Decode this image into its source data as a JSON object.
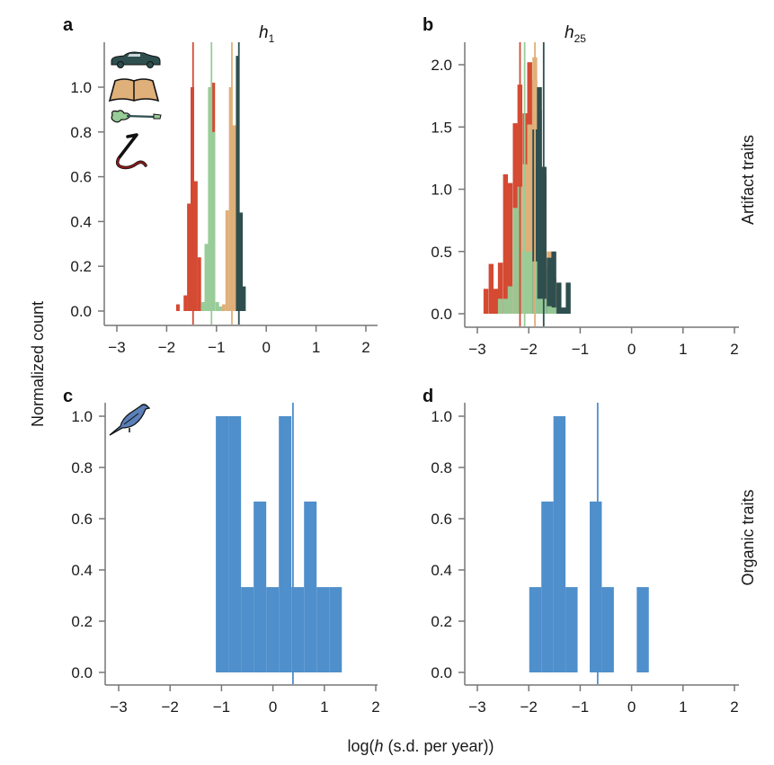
{
  "figure": {
    "ylabel": "Normalized count",
    "xlabel_prefix": "log(",
    "xlabel_var": "h",
    "xlabel_suffix": " (s.d. per year))",
    "row_labels": [
      "Artifact traits",
      "Organic traits"
    ]
  },
  "colors": {
    "cars": "#2f4f4f",
    "books": "#e0b07a",
    "guitars": "#98cc98",
    "sculpture": "#d44a33",
    "birds": "#4f8fcb"
  },
  "icons": [
    "car-icon",
    "book-icon",
    "guitar-icon",
    "sculpture-icon",
    "bird-icon"
  ],
  "chart_data": [
    {
      "id": "a",
      "type": "bar",
      "letter": "a",
      "title_var": "h",
      "title_sub": "1",
      "xlim": [
        -3.2,
        2.25
      ],
      "ylim": [
        -0.06,
        1.2
      ],
      "xticks": [
        "-3",
        "-2",
        "-1",
        "0",
        "1",
        "2"
      ],
      "xtick_values": [
        -3,
        -2,
        -1,
        0,
        1,
        2
      ],
      "yticks": [
        "0.0",
        "0.2",
        "0.4",
        "0.6",
        "0.8",
        "1.0"
      ],
      "ytick_values": [
        0,
        0.2,
        0.4,
        0.6,
        0.8,
        1.0
      ],
      "series": [
        {
          "name": "sculpture",
          "color_key": "sculpture",
          "bin_width": 0.072,
          "bins": [
            [
              -1.81,
              0.03
            ],
            [
              -1.66,
              0.07
            ],
            [
              -1.59,
              0.48
            ],
            [
              -1.52,
              1.0
            ],
            [
              -1.45,
              0.58
            ],
            [
              -1.38,
              0.24
            ],
            [
              -1.1,
              1.02
            ]
          ],
          "mean": -1.47
        },
        {
          "name": "guitars",
          "color_key": "guitars",
          "bin_width": 0.072,
          "bins": [
            [
              -1.31,
              0.04
            ],
            [
              -1.24,
              0.3
            ],
            [
              -1.17,
              1.0
            ],
            [
              -1.1,
              0.8
            ],
            [
              -1.02,
              0.04
            ],
            [
              -0.95,
              0.02
            ]
          ],
          "mean": -1.1
        },
        {
          "name": "books",
          "color_key": "books",
          "bin_width": 0.072,
          "bins": [
            [
              -0.89,
              0.03
            ],
            [
              -0.82,
              0.45
            ],
            [
              -0.75,
              1.0
            ],
            [
              -0.68,
              0.83
            ]
          ],
          "mean": -0.69
        },
        {
          "name": "cars",
          "color_key": "cars",
          "bin_width": 0.068,
          "bins": [
            [
              -0.61,
              1.14
            ],
            [
              -0.54,
              0.44
            ],
            [
              -0.48,
              0.11
            ]
          ],
          "mean": -0.55
        }
      ]
    },
    {
      "id": "b",
      "type": "bar",
      "letter": "b",
      "title_var": "h",
      "title_sub": "25",
      "xlim": [
        -3.25,
        2.25
      ],
      "ylim": [
        -0.1,
        2.2
      ],
      "xticks": [
        "-3",
        "-2",
        "-1",
        "0",
        "1",
        "2"
      ],
      "xtick_values": [
        -3,
        -2,
        -1,
        0,
        1,
        2
      ],
      "yticks": [
        "0.0",
        "0.5",
        "1.0",
        "1.5",
        "2.0"
      ],
      "ytick_values": [
        0,
        0.5,
        1.0,
        1.5,
        2.0
      ],
      "series": [
        {
          "name": "sculpture",
          "color_key": "sculpture",
          "bin_width": 0.095,
          "bins": [
            [
              -2.88,
              0.2
            ],
            [
              -2.78,
              0.4
            ],
            [
              -2.69,
              0.2
            ],
            [
              -2.6,
              0.41
            ],
            [
              -2.5,
              1.12
            ],
            [
              -2.41,
              1.05
            ],
            [
              -2.31,
              1.53
            ],
            [
              -2.22,
              1.84
            ],
            [
              -2.12,
              1.61
            ],
            [
              -2.03,
              2.02
            ],
            [
              -1.93,
              1.88
            ],
            [
              -1.84,
              1.64
            ],
            [
              -1.75,
              1.12
            ],
            [
              -1.65,
              0.37
            ],
            [
              -1.56,
              0.28
            ],
            [
              -1.46,
              0.24
            ]
          ],
          "mean": -2.17
        },
        {
          "name": "books",
          "color_key": "books",
          "bin_width": 0.095,
          "bins": [
            [
              -2.12,
              1.2
            ],
            [
              -2.03,
              1.52
            ],
            [
              -1.93,
              2.06
            ],
            [
              -1.84,
              1.3
            ],
            [
              -1.75,
              0.9
            ],
            [
              -1.65,
              0.5
            ],
            [
              -1.56,
              0.26
            ],
            [
              -1.46,
              0.05
            ]
          ],
          "mean": -1.88
        },
        {
          "name": "cars",
          "color_key": "cars",
          "bin_width": 0.095,
          "bins": [
            [
              -1.93,
              1.48
            ],
            [
              -1.84,
              1.82
            ],
            [
              -1.75,
              1.18
            ],
            [
              -1.65,
              0.45
            ],
            [
              -1.56,
              0.5
            ],
            [
              -1.46,
              0.25
            ],
            [
              -1.37,
              0.05
            ],
            [
              -1.28,
              0.25
            ]
          ],
          "mean": -1.71
        },
        {
          "name": "guitars",
          "color_key": "guitars",
          "bin_width": 0.095,
          "bins": [
            [
              -2.6,
              0.12
            ],
            [
              -2.5,
              0.12
            ],
            [
              -2.41,
              0.22
            ],
            [
              -2.31,
              0.85
            ],
            [
              -2.22,
              1.02
            ],
            [
              -2.12,
              0.5
            ],
            [
              -2.03,
              0.5
            ],
            [
              -1.93,
              0.42
            ],
            [
              -1.84,
              0.12
            ],
            [
              -1.75,
              0.12
            ],
            [
              -1.65,
              0.06
            ],
            [
              -1.56,
              0.05
            ]
          ],
          "mean": -2.08
        }
      ]
    },
    {
      "id": "c",
      "type": "bar",
      "letter": "c",
      "xlim": [
        -3.25,
        2.25
      ],
      "ylim": [
        -0.05,
        1.08
      ],
      "xticks": [
        "-3",
        "-2",
        "-1",
        "0",
        "1",
        "2"
      ],
      "xtick_values": [
        -3,
        -2,
        -1,
        0,
        1,
        2
      ],
      "yticks": [
        "0.0",
        "0.2",
        "0.4",
        "0.6",
        "0.8",
        "1.0"
      ],
      "ytick_values": [
        0,
        0.2,
        0.4,
        0.6,
        0.8,
        1.0
      ],
      "series": [
        {
          "name": "birds",
          "color_key": "birds",
          "bin_width": 0.245,
          "bins": [
            [
              -1.11,
              1.0
            ],
            [
              -0.865,
              1.0
            ],
            [
              -0.62,
              0.333
            ],
            [
              -0.375,
              0.667
            ],
            [
              -0.13,
              0.333
            ],
            [
              0.115,
              1.0
            ],
            [
              0.36,
              0.333
            ],
            [
              0.605,
              0.667
            ],
            [
              0.85,
              0.333
            ],
            [
              1.095,
              0.333
            ]
          ],
          "mean": 0.39
        }
      ]
    },
    {
      "id": "d",
      "type": "bar",
      "letter": "d",
      "xlim": [
        -3.25,
        2.25
      ],
      "ylim": [
        -0.05,
        1.08
      ],
      "xticks": [
        "-3",
        "-2",
        "-1",
        "0",
        "1",
        "2"
      ],
      "xtick_values": [
        -3,
        -2,
        -1,
        0,
        1,
        2
      ],
      "yticks": [
        "0.0",
        "0.2",
        "0.4",
        "0.6",
        "0.8",
        "1.0"
      ],
      "ytick_values": [
        0,
        0.2,
        0.4,
        0.6,
        0.8,
        1.0
      ],
      "series": [
        {
          "name": "birds",
          "color_key": "birds",
          "bin_width": 0.235,
          "bins": [
            [
              -1.99,
              0.333
            ],
            [
              -1.755,
              0.667
            ],
            [
              -1.52,
              1.0
            ],
            [
              -1.285,
              0.333
            ],
            [
              -0.815,
              0.667
            ],
            [
              -0.58,
              0.333
            ],
            [
              0.1,
              0.333
            ]
          ],
          "mean": -0.66
        }
      ]
    }
  ]
}
